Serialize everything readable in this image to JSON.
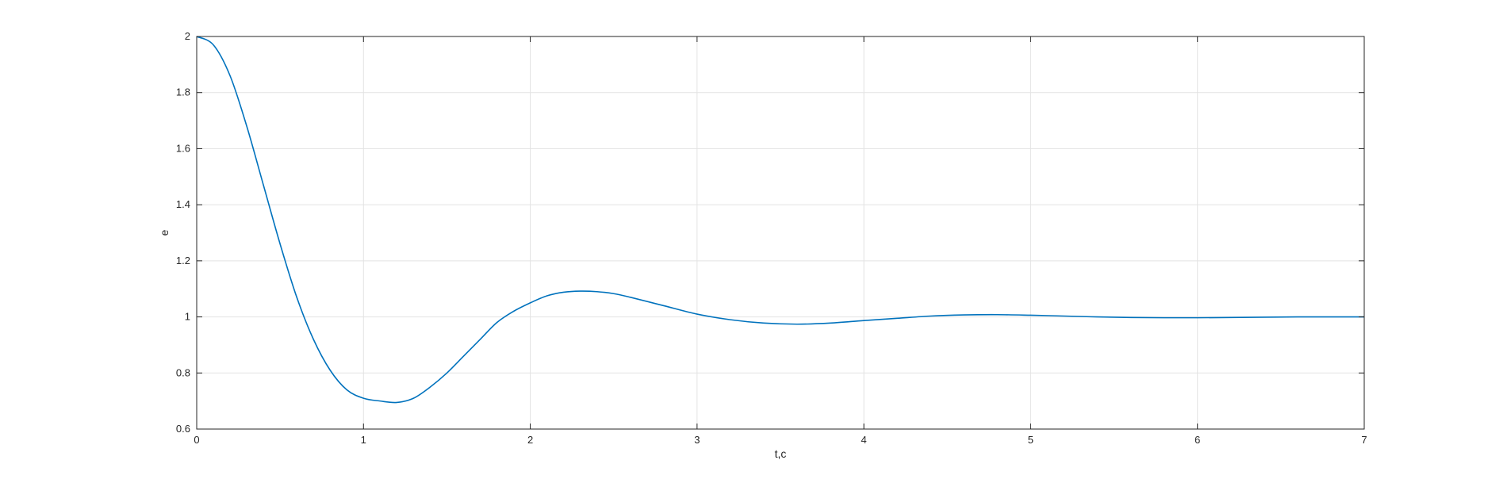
{
  "chart_data": {
    "type": "line",
    "title": "",
    "xlabel": "t,c",
    "ylabel": "e",
    "xlim": [
      0,
      7
    ],
    "ylim": [
      0.6,
      2
    ],
    "grid": true,
    "x_ticks": [
      "0",
      "1",
      "2",
      "3",
      "4",
      "5",
      "6",
      "7"
    ],
    "y_ticks": [
      "0.6",
      "0.8",
      "1",
      "1.2",
      "1.4",
      "1.6",
      "1.8",
      "2"
    ],
    "series": [
      {
        "color": "#0072bd",
        "x": [
          0,
          0.1,
          0.2,
          0.3,
          0.4,
          0.5,
          0.6,
          0.7,
          0.8,
          0.9,
          1.0,
          1.1,
          1.2,
          1.3,
          1.4,
          1.5,
          1.6,
          1.7,
          1.8,
          1.9,
          2.0,
          2.1,
          2.2,
          2.3,
          2.4,
          2.5,
          2.6,
          2.8,
          3.0,
          3.2,
          3.4,
          3.6,
          3.8,
          4.0,
          4.2,
          4.4,
          4.6,
          4.8,
          5.0,
          5.2,
          5.4,
          5.6,
          5.8,
          6.0,
          6.2,
          6.4,
          6.6,
          6.8,
          7.0
        ],
        "y": [
          2.0,
          1.97,
          1.86,
          1.68,
          1.47,
          1.26,
          1.07,
          0.92,
          0.81,
          0.74,
          0.71,
          0.7,
          0.695,
          0.71,
          0.75,
          0.8,
          0.86,
          0.92,
          0.98,
          1.02,
          1.05,
          1.075,
          1.088,
          1.092,
          1.09,
          1.083,
          1.07,
          1.04,
          1.01,
          0.99,
          0.978,
          0.974,
          0.978,
          0.987,
          0.995,
          1.003,
          1.007,
          1.008,
          1.006,
          1.003,
          1.0,
          0.998,
          0.997,
          0.997,
          0.998,
          0.999,
          1.0,
          1.0,
          1.0
        ]
      }
    ]
  }
}
